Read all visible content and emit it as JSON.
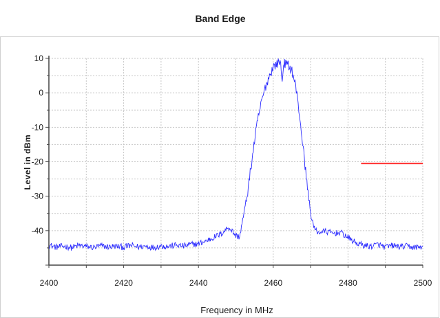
{
  "chart_data": {
    "type": "line",
    "title": "Band Edge",
    "xlabel": "Frequency in MHz",
    "ylabel": "Level in dBm",
    "xlim": [
      2400,
      2500
    ],
    "ylim": [
      -50,
      10
    ],
    "xticks": [
      2400,
      2420,
      2440,
      2460,
      2480,
      2500
    ],
    "yticks": [
      10,
      0,
      -10,
      -20,
      -30,
      -40
    ],
    "grid": true,
    "series": [
      {
        "color": "#2a2aff",
        "points": [
          [
            2400,
            -44.2
          ],
          [
            2402,
            -44.8
          ],
          [
            2404,
            -44.5
          ],
          [
            2406,
            -44.9
          ],
          [
            2408,
            -44.3
          ],
          [
            2410,
            -44.6
          ],
          [
            2412,
            -44.9
          ],
          [
            2414,
            -44.4
          ],
          [
            2416,
            -44.7
          ],
          [
            2418,
            -44.5
          ],
          [
            2420,
            -44.8
          ],
          [
            2422,
            -44.3
          ],
          [
            2424,
            -44.7
          ],
          [
            2426,
            -44.5
          ],
          [
            2428,
            -44.9
          ],
          [
            2430,
            -44.4
          ],
          [
            2432,
            -44.6
          ],
          [
            2434,
            -44.2
          ],
          [
            2436,
            -44.5
          ],
          [
            2438,
            -44.0
          ],
          [
            2440,
            -43.8
          ],
          [
            2442,
            -43.0
          ],
          [
            2444,
            -42.0
          ],
          [
            2446,
            -41.0
          ],
          [
            2447,
            -40.0
          ],
          [
            2448,
            -39.0
          ],
          [
            2449,
            -40.0
          ],
          [
            2450,
            -41.5
          ],
          [
            2451,
            -41.8
          ],
          [
            2452,
            -36.0
          ],
          [
            2453,
            -30.0
          ],
          [
            2454,
            -22.0
          ],
          [
            2455,
            -14.0
          ],
          [
            2456,
            -7.0
          ],
          [
            2457,
            -2.0
          ],
          [
            2458,
            2.0
          ],
          [
            2459,
            5.0
          ],
          [
            2460,
            7.5
          ],
          [
            2461,
            8.5
          ],
          [
            2462,
            9.0
          ],
          [
            2462.4,
            2.5
          ],
          [
            2462.8,
            9.0
          ],
          [
            2463,
            8.5
          ],
          [
            2464,
            8.0
          ],
          [
            2465,
            6.5
          ],
          [
            2466,
            2.0
          ],
          [
            2467,
            -6.0
          ],
          [
            2468,
            -16.0
          ],
          [
            2469,
            -26.0
          ],
          [
            2470,
            -35.0
          ],
          [
            2471,
            -39.5
          ],
          [
            2472,
            -40.5
          ],
          [
            2474,
            -40.2
          ],
          [
            2476,
            -40.8
          ],
          [
            2478,
            -40.5
          ],
          [
            2480,
            -42.0
          ],
          [
            2482,
            -43.5
          ],
          [
            2484,
            -44.2
          ],
          [
            2486,
            -44.6
          ],
          [
            2488,
            -44.0
          ],
          [
            2490,
            -44.8
          ],
          [
            2492,
            -44.3
          ],
          [
            2494,
            -44.7
          ],
          [
            2496,
            -44.5
          ],
          [
            2498,
            -44.9
          ],
          [
            2500,
            -44.6
          ]
        ]
      },
      {
        "color": "#ff3b3b",
        "points": [
          [
            2483.5,
            -20.5
          ],
          [
            2500,
            -20.5
          ]
        ]
      }
    ]
  }
}
